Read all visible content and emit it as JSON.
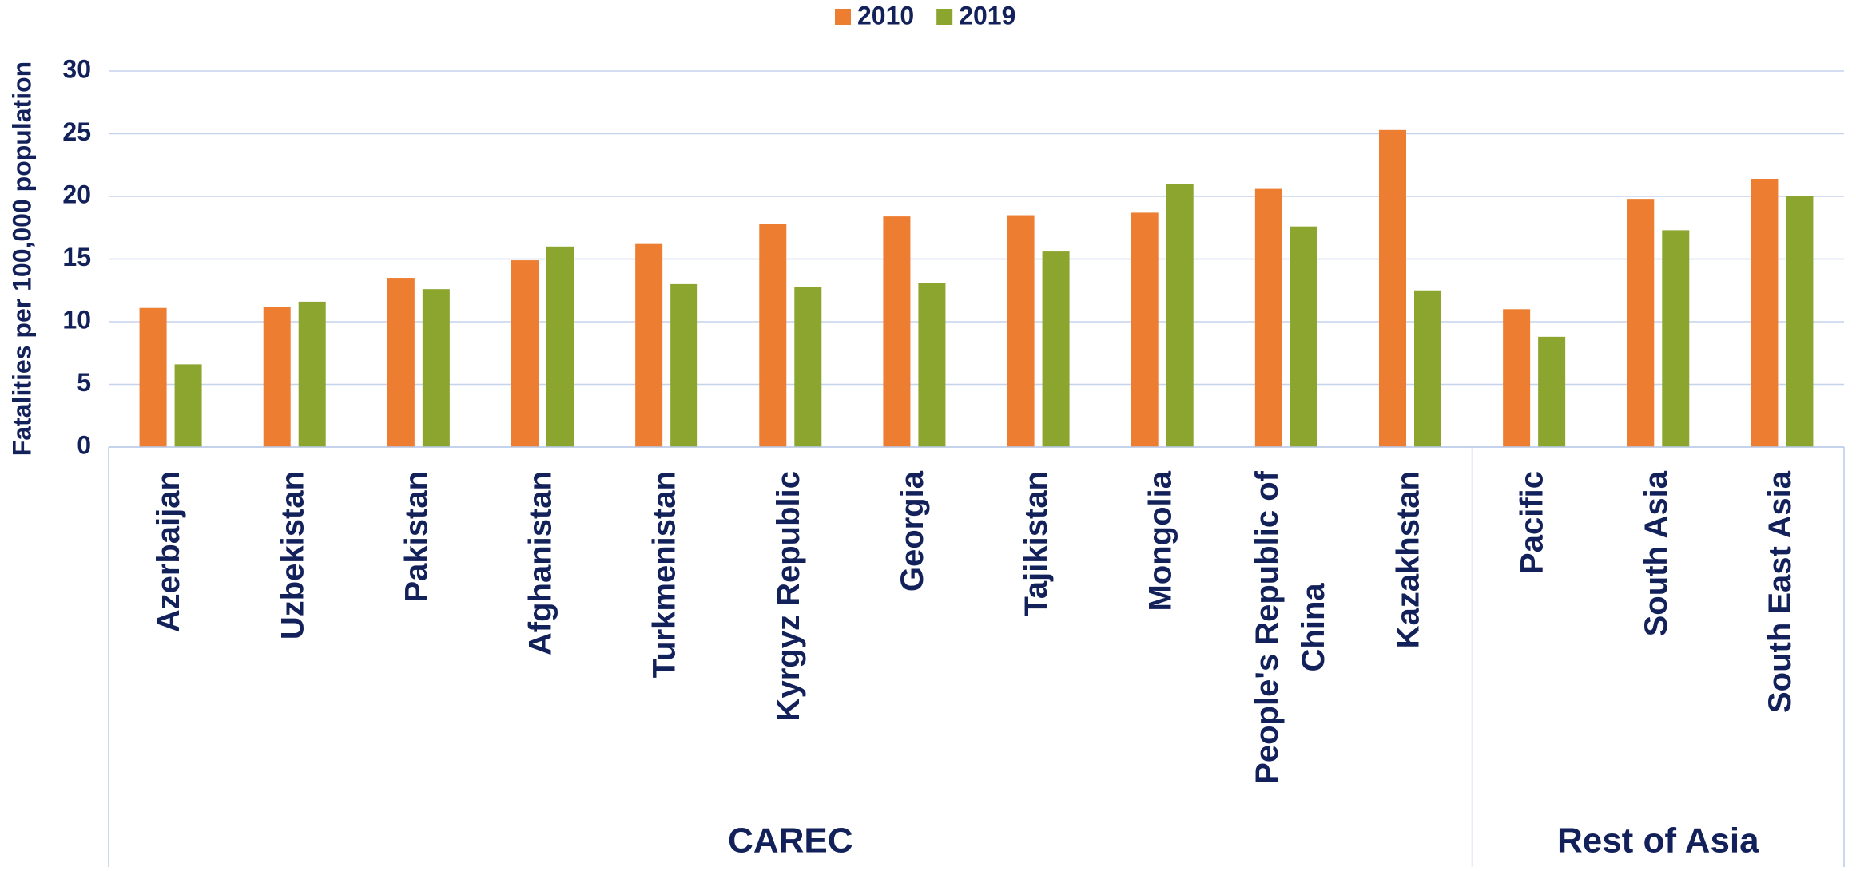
{
  "chart_data": {
    "type": "bar",
    "y_label": "Fatalities per 100,000 population",
    "categories": [
      "Azerbaijan",
      "Uzbekistan",
      "Pakistan",
      "Afghanistan",
      "Turkmenistan",
      "Kyrgyz Republic",
      "Georgia",
      "Tajikistan",
      "Mongolia",
      "People's Republic of China",
      "Kazakhstan",
      "Pacific",
      "South Asia",
      "South East Asia"
    ],
    "groups": [
      {
        "label": "CAREC",
        "size": 11
      },
      {
        "label": "Rest of Asia",
        "size": 3
      }
    ],
    "series": [
      {
        "name": "2010",
        "color": "#ed7d31",
        "values": [
          11.1,
          11.2,
          13.5,
          14.9,
          16.2,
          17.8,
          18.4,
          18.5,
          18.7,
          20.6,
          25.3,
          11.0,
          19.8,
          21.4
        ]
      },
      {
        "name": "2019",
        "color": "#8ba52e",
        "values": [
          6.6,
          11.6,
          12.6,
          16.0,
          13.0,
          12.8,
          13.1,
          15.6,
          21.0,
          17.6,
          12.5,
          8.8,
          17.3,
          20.0
        ]
      }
    ],
    "ylim": [
      0,
      30
    ],
    "yticks": [
      0,
      5,
      10,
      15,
      20,
      25,
      30
    ],
    "grid": true,
    "legend": "top"
  }
}
